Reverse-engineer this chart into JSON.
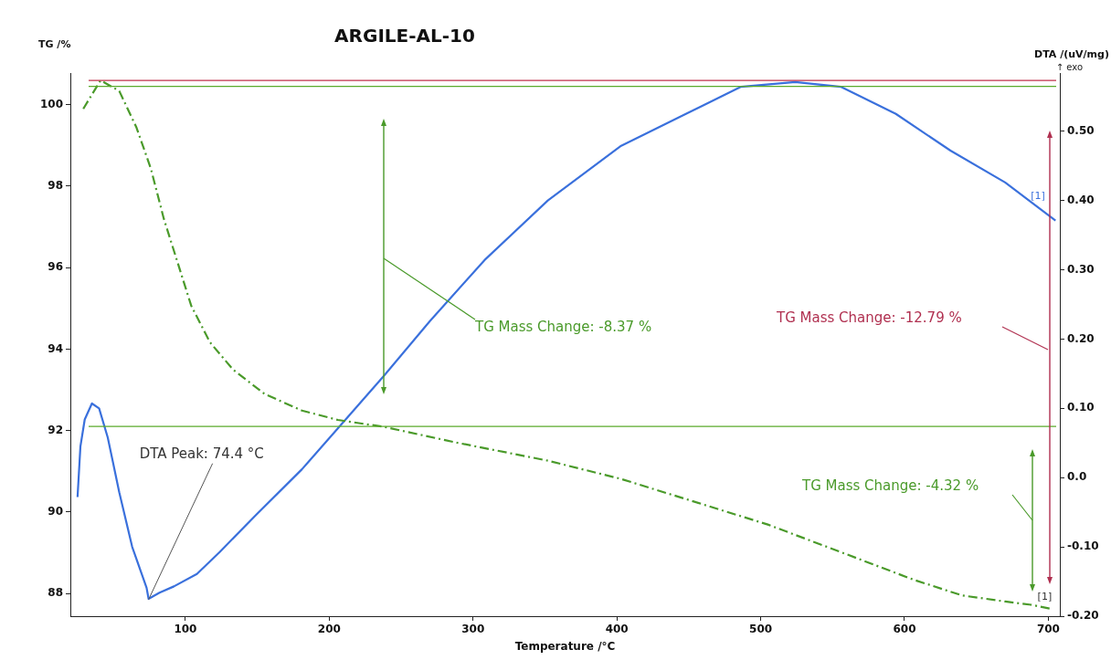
{
  "chart_data": {
    "type": "line",
    "title": "ARGILE-AL-10",
    "xlabel": "Temperature /°C",
    "ylabel": "TG /%",
    "y2label": "DTA /(uV/mg)",
    "xlim": [
      20,
      708
    ],
    "xticks": [
      100,
      200,
      300,
      400,
      500,
      600,
      700
    ],
    "ylim": [
      87.44,
      100.78
    ],
    "yticks": [
      88,
      90,
      92,
      94,
      96,
      98,
      100
    ],
    "y2lim": [
      -0.2,
      0.584
    ],
    "y2ticks": [
      {
        "value": -0.2,
        "label": "-0.20"
      },
      {
        "value": -0.1,
        "label": "-0.10"
      },
      {
        "value": 0,
        "label": "0.0"
      },
      {
        "value": 0.1,
        "label": "0.10"
      },
      {
        "value": 0.2,
        "label": "0.20"
      },
      {
        "value": 0.3,
        "label": "0.30"
      },
      {
        "value": 0.4,
        "label": "0.40"
      },
      {
        "value": 0.5,
        "label": "0.50"
      }
    ],
    "grid": false,
    "legend": false,
    "marker": "none",
    "series": [
      {
        "color": "#4a9a2a",
        "line_style": "dashed",
        "x": [
          29,
          41,
          54,
          66,
          76,
          85,
          95,
          104,
          117,
          133,
          155,
          181,
          206,
          238,
          289,
          352,
          403,
          454,
          505,
          556,
          606,
          640,
          670,
          688,
          702
        ],
        "values": [
          99.9,
          100.6,
          100.34,
          99.44,
          98.43,
          97.2,
          96.08,
          95.07,
          94.17,
          93.5,
          92.9,
          92.49,
          92.26,
          92.09,
          91.7,
          91.26,
          90.81,
          90.25,
          89.69,
          89.01,
          88.34,
          87.95,
          87.8,
          87.72,
          87.62
        ]
      },
      {
        "color": "#3a70dc",
        "axis": "y2",
        "x": [
          25,
          27,
          30,
          35,
          40,
          46,
          54,
          63,
          73,
          74.4,
          82,
          92,
          108,
          124,
          149,
          181,
          206,
          238,
          270,
          308,
          352,
          403,
          448,
          486,
          524,
          556,
          594,
          632,
          670,
          705
        ],
        "values": [
          -0.028,
          0.045,
          0.084,
          0.107,
          0.1,
          0.058,
          -0.021,
          -0.1,
          -0.159,
          -0.175,
          -0.166,
          -0.157,
          -0.139,
          -0.107,
          -0.054,
          0.012,
          0.071,
          0.147,
          0.226,
          0.314,
          0.4,
          0.479,
          0.525,
          0.564,
          0.571,
          0.564,
          0.525,
          0.472,
          0.426,
          0.371
        ]
      }
    ],
    "ref_lines": [
      {
        "axis": "y",
        "value": 100.6,
        "color": "#c0304a"
      },
      {
        "axis": "y",
        "value": 100.45,
        "color": "#5aaa2a"
      },
      {
        "axis": "y",
        "value": 92.1,
        "color": "#5aaa2a"
      }
    ],
    "annotations": [
      "↑ exo",
      {
        "text": "DTA Peak: 74.4 °C",
        "x": 74.4,
        "y": 87.85
      },
      "TG Mass Change: -8.37 %",
      "TG Mass Change: -12.79 %",
      "TG Mass Change: -4.32 %",
      "[1]",
      {
        "text": "[1]",
        "x": 700,
        "y": 87.62
      }
    ]
  }
}
